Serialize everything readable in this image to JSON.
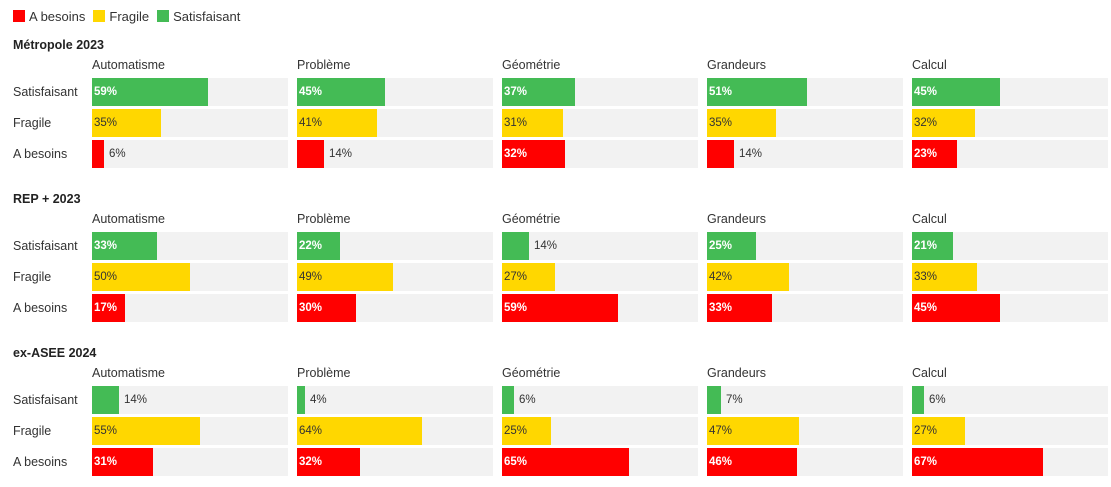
{
  "legend": [
    {
      "label": "A besoins",
      "color": "#ff0000"
    },
    {
      "label": "Fragile",
      "color": "#ffd700"
    },
    {
      "label": "Satisfaisant",
      "color": "#44bb55"
    }
  ],
  "chart_data": {
    "type": "bar",
    "orientation": "horizontal",
    "legend_position": "top-left",
    "xlim": [
      0,
      100
    ],
    "unit": "%",
    "domains": [
      "Automatisme",
      "Problème",
      "Géométrie",
      "Grandeurs",
      "Calcul"
    ],
    "levels": [
      "Satisfaisant",
      "Fragile",
      "A besoins"
    ],
    "colors": {
      "Satisfaisant": "#44bb55",
      "Fragile": "#ffd700",
      "A besoins": "#ff0000"
    },
    "groups": [
      {
        "title": "Métropole 2023",
        "series": [
          {
            "name": "Satisfaisant",
            "values": [
              59,
              45,
              37,
              51,
              45
            ]
          },
          {
            "name": "Fragile",
            "values": [
              35,
              41,
              31,
              35,
              32
            ]
          },
          {
            "name": "A besoins",
            "values": [
              6,
              14,
              32,
              14,
              23
            ]
          }
        ]
      },
      {
        "title": "REP + 2023",
        "series": [
          {
            "name": "Satisfaisant",
            "values": [
              33,
              22,
              14,
              25,
              21
            ]
          },
          {
            "name": "Fragile",
            "values": [
              50,
              49,
              27,
              42,
              33
            ]
          },
          {
            "name": "A besoins",
            "values": [
              17,
              30,
              59,
              33,
              45
            ]
          }
        ]
      },
      {
        "title": "ex-ASEE 2024",
        "series": [
          {
            "name": "Satisfaisant",
            "values": [
              14,
              4,
              6,
              7,
              6
            ]
          },
          {
            "name": "Fragile",
            "values": [
              55,
              64,
              25,
              47,
              27
            ]
          },
          {
            "name": "A besoins",
            "values": [
              31,
              32,
              65,
              46,
              67
            ]
          }
        ]
      }
    ]
  }
}
